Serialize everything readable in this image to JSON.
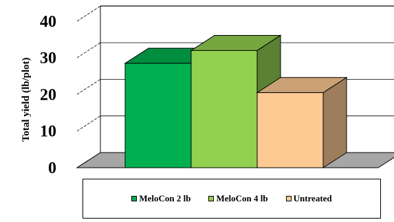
{
  "chart_data": {
    "type": "bar",
    "categories": [
      ""
    ],
    "series": [
      {
        "name": "MeloCon 2 lb",
        "values": [
          28.5
        ],
        "color": "#00b050"
      },
      {
        "name": "MeloCon 4 lb",
        "values": [
          32.0
        ],
        "color": "#92d050"
      },
      {
        "name": "Untreated",
        "values": [
          20.5
        ],
        "color": "#fdca94"
      }
    ],
    "ylabel": "Total yield (lb/plot)",
    "yticks": [
      0,
      10,
      20,
      30,
      40
    ],
    "ylim": [
      0,
      40
    ],
    "grid": true,
    "three_d": true,
    "legend_position": "bottom"
  }
}
